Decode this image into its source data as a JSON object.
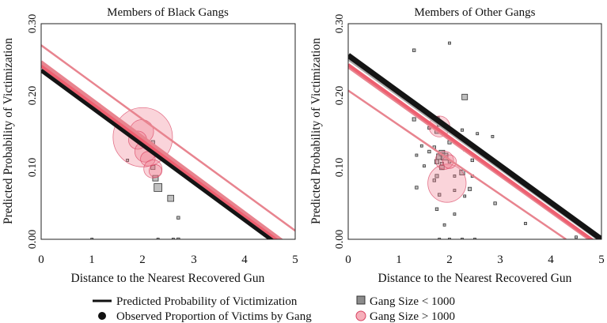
{
  "chart_data": [
    {
      "type": "scatter",
      "title": "Members of Black Gangs",
      "xlabel": "Distance to the Nearest Recovered Gun",
      "ylabel": "Predicted Probability of Victimization",
      "xlim": [
        0,
        5
      ],
      "ylim": [
        0,
        0.3
      ],
      "x_ticks": [
        "0",
        "1",
        "2",
        "3",
        "4",
        "5"
      ],
      "y_ticks": [
        "0.00",
        "0.10",
        "0.20",
        "0.30"
      ],
      "lines": [
        {
          "name": "gang-line-1",
          "color": "#e8848f",
          "width": 2.5,
          "x": [
            0,
            5
          ],
          "y": [
            0.27,
            0.012
          ]
        },
        {
          "name": "gang-line-2",
          "color": "#e8848f",
          "width": 4,
          "x": [
            0,
            5
          ],
          "y": [
            0.247,
            -0.015
          ]
        },
        {
          "name": "gang-line-3",
          "color": "#e8848f",
          "width": 4,
          "x": [
            0,
            5
          ],
          "y": [
            0.244,
            -0.018
          ]
        },
        {
          "name": "gang-line-4",
          "color": "#ee5f70",
          "width": 4,
          "x": [
            0,
            5
          ],
          "y": [
            0.241,
            -0.02
          ]
        },
        {
          "name": "predicted-line",
          "color": "#141414",
          "width": 5,
          "x": [
            0,
            5
          ],
          "y": [
            0.235,
            -0.025
          ]
        }
      ],
      "small_gangs": [
        {
          "x": 1.0,
          "y": 0.0,
          "r": 0.8
        },
        {
          "x": 1.7,
          "y": 0.11,
          "r": 0.8
        },
        {
          "x": 2.2,
          "y": 0.135,
          "r": 1.2
        },
        {
          "x": 2.2,
          "y": 0.1,
          "r": 1.5
        },
        {
          "x": 2.25,
          "y": 0.085,
          "r": 2.0
        },
        {
          "x": 2.3,
          "y": 0.072,
          "r": 2.8
        },
        {
          "x": 2.55,
          "y": 0.057,
          "r": 2.2
        },
        {
          "x": 2.7,
          "y": 0.03,
          "r": 1.0
        },
        {
          "x": 2.7,
          "y": 0.0,
          "r": 1.0
        },
        {
          "x": 2.3,
          "y": 0.0,
          "r": 0.7
        },
        {
          "x": 2.6,
          "y": 0.0,
          "r": 0.7
        }
      ],
      "large_gangs": [
        {
          "x": 2.0,
          "y": 0.142,
          "r": 6.5
        },
        {
          "x": 1.98,
          "y": 0.15,
          "r": 2.6
        },
        {
          "x": 1.9,
          "y": 0.138,
          "r": 2.0
        },
        {
          "x": 2.05,
          "y": 0.122,
          "r": 2.3
        },
        {
          "x": 2.1,
          "y": 0.112,
          "r": 1.6
        },
        {
          "x": 2.2,
          "y": 0.098,
          "r": 2.0
        },
        {
          "x": 2.25,
          "y": 0.095,
          "r": 1.4
        }
      ]
    },
    {
      "type": "scatter",
      "title": "Members of Other Gangs",
      "xlabel": "Distance to the Nearest Recovered Gun",
      "ylabel": "Predicted Probability of Victimization",
      "xlim": [
        0,
        5
      ],
      "ylim": [
        0,
        0.3
      ],
      "x_ticks": [
        "0",
        "1",
        "2",
        "3",
        "4",
        "5"
      ],
      "y_ticks": [
        "0.00",
        "0.10",
        "0.20",
        "0.30"
      ],
      "lines": [
        {
          "name": "gang-line-1",
          "color": "#e8848f",
          "width": 2.5,
          "x": [
            0,
            4.3
          ],
          "y": [
            0.207,
            0.0
          ]
        },
        {
          "name": "gang-line-2",
          "color": "#e8848f",
          "width": 4,
          "x": [
            0,
            5
          ],
          "y": [
            0.24,
            -0.012
          ]
        },
        {
          "name": "gang-line-3",
          "color": "#ee5f70",
          "width": 4,
          "x": [
            0,
            5
          ],
          "y": [
            0.243,
            -0.01
          ]
        },
        {
          "name": "gang-line-4",
          "color": "#aaaaaa",
          "width": 4,
          "x": [
            0,
            5
          ],
          "y": [
            0.251,
            -0.003
          ]
        },
        {
          "name": "predicted-line",
          "color": "#141414",
          "width": 7,
          "x": [
            0,
            5
          ],
          "y": [
            0.256,
            0.0
          ]
        }
      ],
      "small_gangs": [
        {
          "x": 1.3,
          "y": 0.263,
          "r": 1.0
        },
        {
          "x": 2.0,
          "y": 0.273,
          "r": 0.8
        },
        {
          "x": 2.3,
          "y": 0.198,
          "r": 2.0
        },
        {
          "x": 1.3,
          "y": 0.167,
          "r": 1.2
        },
        {
          "x": 1.75,
          "y": 0.167,
          "r": 1.8
        },
        {
          "x": 1.8,
          "y": 0.16,
          "r": 1.5
        },
        {
          "x": 1.6,
          "y": 0.155,
          "r": 1.0
        },
        {
          "x": 1.75,
          "y": 0.15,
          "r": 1.4
        },
        {
          "x": 2.25,
          "y": 0.152,
          "r": 0.9
        },
        {
          "x": 2.55,
          "y": 0.147,
          "r": 0.7
        },
        {
          "x": 2.85,
          "y": 0.143,
          "r": 0.7
        },
        {
          "x": 2.0,
          "y": 0.135,
          "r": 1.2
        },
        {
          "x": 1.45,
          "y": 0.13,
          "r": 0.8
        },
        {
          "x": 1.7,
          "y": 0.128,
          "r": 1.0
        },
        {
          "x": 2.3,
          "y": 0.125,
          "r": 1.0
        },
        {
          "x": 1.6,
          "y": 0.122,
          "r": 1.0
        },
        {
          "x": 1.85,
          "y": 0.12,
          "r": 2.0
        },
        {
          "x": 1.35,
          "y": 0.117,
          "r": 0.8
        },
        {
          "x": 1.8,
          "y": 0.115,
          "r": 2.0
        },
        {
          "x": 1.9,
          "y": 0.115,
          "r": 2.5
        },
        {
          "x": 1.75,
          "y": 0.108,
          "r": 1.5
        },
        {
          "x": 1.85,
          "y": 0.105,
          "r": 1.2
        },
        {
          "x": 2.0,
          "y": 0.108,
          "r": 1.0
        },
        {
          "x": 2.45,
          "y": 0.11,
          "r": 1.0
        },
        {
          "x": 1.85,
          "y": 0.1,
          "r": 1.6
        },
        {
          "x": 1.5,
          "y": 0.102,
          "r": 0.8
        },
        {
          "x": 2.25,
          "y": 0.093,
          "r": 1.8
        },
        {
          "x": 1.75,
          "y": 0.088,
          "r": 1.2
        },
        {
          "x": 2.1,
          "y": 0.088,
          "r": 0.8
        },
        {
          "x": 2.45,
          "y": 0.088,
          "r": 0.9
        },
        {
          "x": 1.7,
          "y": 0.082,
          "r": 1.0
        },
        {
          "x": 3.1,
          "y": 0.085,
          "r": 0.6
        },
        {
          "x": 1.35,
          "y": 0.072,
          "r": 1.0
        },
        {
          "x": 2.4,
          "y": 0.07,
          "r": 1.2
        },
        {
          "x": 2.1,
          "y": 0.068,
          "r": 0.8
        },
        {
          "x": 1.8,
          "y": 0.062,
          "r": 1.0
        },
        {
          "x": 2.3,
          "y": 0.06,
          "r": 0.8
        },
        {
          "x": 2.9,
          "y": 0.05,
          "r": 1.0
        },
        {
          "x": 1.75,
          "y": 0.042,
          "r": 1.0
        },
        {
          "x": 2.1,
          "y": 0.035,
          "r": 0.7
        },
        {
          "x": 3.5,
          "y": 0.022,
          "r": 0.8
        },
        {
          "x": 1.9,
          "y": 0.02,
          "r": 0.8
        },
        {
          "x": 1.8,
          "y": 0.0,
          "r": 0.8
        },
        {
          "x": 2.0,
          "y": 0.0,
          "r": 0.6
        },
        {
          "x": 2.25,
          "y": 0.0,
          "r": 0.6
        },
        {
          "x": 2.5,
          "y": 0.0,
          "r": 0.8
        },
        {
          "x": 4.5,
          "y": 0.003,
          "r": 0.5
        }
      ],
      "large_gangs": [
        {
          "x": 1.95,
          "y": 0.078,
          "r": 4.2
        },
        {
          "x": 1.8,
          "y": 0.157,
          "r": 2.3
        },
        {
          "x": 1.9,
          "y": 0.11,
          "r": 2.0
        },
        {
          "x": 2.0,
          "y": 0.108,
          "r": 1.5
        }
      ]
    }
  ],
  "legend": {
    "line_label": "Predicted Probability of Victimization",
    "dot_label": "Observed Proportion of Victims by Gang",
    "small_label": "Gang Size < 1000",
    "large_label": "Gang Size > 1000"
  },
  "colors": {
    "small_fill": "#8c8c8c",
    "small_stroke": "#333333",
    "large_fill": "#f07a8c",
    "large_stroke": "#d84060"
  }
}
